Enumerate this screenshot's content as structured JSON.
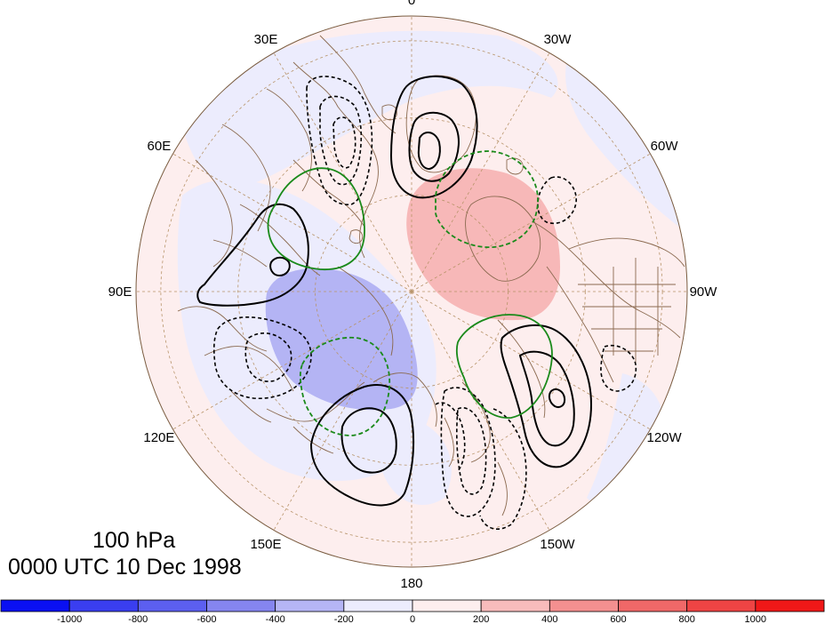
{
  "projection": "north-polar-stereographic",
  "longitude_labels": [
    {
      "lon": 0,
      "text": "0"
    },
    {
      "lon": 30,
      "text": "30E"
    },
    {
      "lon": -30,
      "text": "30W"
    },
    {
      "lon": 60,
      "text": "60E"
    },
    {
      "lon": -60,
      "text": "60W"
    },
    {
      "lon": 90,
      "text": "90E"
    },
    {
      "lon": -90,
      "text": "90W"
    },
    {
      "lon": 120,
      "text": "120E"
    },
    {
      "lon": -120,
      "text": "120W"
    },
    {
      "lon": 150,
      "text": "150E"
    },
    {
      "lon": -150,
      "text": "150W"
    },
    {
      "lon": 180,
      "text": "180"
    }
  ],
  "title": {
    "level": "100 hPa",
    "time": "0000 UTC 10 Dec 1998"
  },
  "colorbar": {
    "colors": [
      "#0a10f2",
      "#3a3ef0",
      "#5c5ff0",
      "#8585f0",
      "#b5b5f5",
      "#ececfd",
      "#fdeeee",
      "#f8bcbc",
      "#f49090",
      "#f06868",
      "#ee4444",
      "#f01818"
    ],
    "tick_labels": [
      "-1000",
      "-800",
      "-600",
      "-400",
      "-200",
      "0",
      "200",
      "400",
      "600",
      "800",
      "1000"
    ]
  },
  "colors": {
    "land_outline": "#8b6a50",
    "grid": "#b8946a",
    "negative_contour": "#000000",
    "positive_contour": "#000000",
    "green_contour": "#1a8a1a",
    "anom_neg_light": "#ececfd",
    "anom_pos_light": "#fdeeee",
    "anom_neg_strong": "#b4b4f4",
    "anom_pos_strong": "#f7b8b8"
  }
}
